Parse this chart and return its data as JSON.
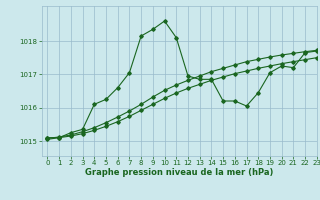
{
  "title": "Graphe pression niveau de la mer (hPa)",
  "bg_color": "#cce8ec",
  "grid_color": "#99bbcc",
  "line_color": "#1a6620",
  "xlim": [
    -0.5,
    23
  ],
  "ylim": [
    1014.55,
    1019.05
  ],
  "yticks": [
    1015,
    1016,
    1017,
    1018
  ],
  "xticks": [
    0,
    1,
    2,
    3,
    4,
    5,
    6,
    7,
    8,
    9,
    10,
    11,
    12,
    13,
    14,
    15,
    16,
    17,
    18,
    19,
    20,
    21,
    22,
    23
  ],
  "series": {
    "line1": [
      1015.1,
      1015.1,
      1015.25,
      1015.35,
      1016.1,
      1016.25,
      1016.6,
      1017.05,
      1018.15,
      1018.35,
      1018.6,
      1018.1,
      1016.95,
      1016.85,
      1016.85,
      1016.2,
      1016.2,
      1016.05,
      1016.45,
      1017.05,
      1017.25,
      1017.2,
      1017.65,
      1017.7
    ],
    "line2": [
      1015.08,
      1015.12,
      1015.18,
      1015.28,
      1015.4,
      1015.55,
      1015.72,
      1015.9,
      1016.1,
      1016.32,
      1016.52,
      1016.68,
      1016.82,
      1016.95,
      1017.08,
      1017.18,
      1017.28,
      1017.38,
      1017.45,
      1017.52,
      1017.58,
      1017.63,
      1017.68,
      1017.72
    ],
    "line3": [
      1015.05,
      1015.1,
      1015.15,
      1015.22,
      1015.32,
      1015.44,
      1015.58,
      1015.74,
      1015.92,
      1016.1,
      1016.28,
      1016.44,
      1016.58,
      1016.7,
      1016.82,
      1016.92,
      1017.02,
      1017.1,
      1017.18,
      1017.25,
      1017.32,
      1017.38,
      1017.44,
      1017.5
    ]
  }
}
